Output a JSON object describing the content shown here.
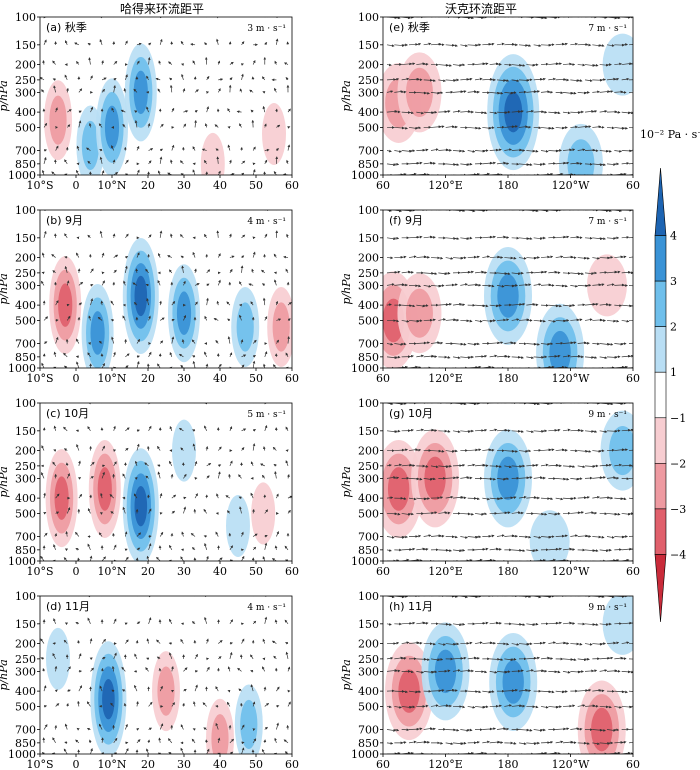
{
  "column_titles": [
    "哈得来环流距平",
    "沃克环流距平"
  ],
  "colorbar": {
    "unit_label": "10⁻² Pa · s⁻¹",
    "ticks": [
      "4",
      "3",
      "2",
      "1",
      "−1",
      "−2",
      "−3",
      "−4"
    ],
    "levels": [
      -4.5,
      -4,
      -3,
      -2,
      -1,
      1,
      2,
      3,
      4,
      4.5
    ],
    "colors": [
      "#c92b3a",
      "#e0606c",
      "#ee9aa1",
      "#f7cdd1",
      "#ffffff",
      "#b9def4",
      "#6fbfeb",
      "#3a93d6",
      "#1d64b2"
    ]
  },
  "colors": {
    "positive": "#2f86cf",
    "negative": "#d94a58",
    "vector": "#333333"
  },
  "y_axis": {
    "label": "p/hPa",
    "ticks": [
      "100",
      "150",
      "200",
      "250",
      "300",
      "400",
      "500",
      "700",
      "850",
      "1000"
    ]
  },
  "chart_data": [
    {
      "type": "contour-vector",
      "panel": "a",
      "title": "(a) 秋季",
      "column": "Hadley",
      "vector_scale": "3 m · s⁻¹",
      "x_ticks": [
        "10°S",
        "0",
        "10°N",
        "20",
        "30",
        "40",
        "50",
        "60"
      ],
      "xlim": [
        -10,
        60
      ],
      "ylim": [
        1000,
        100
      ],
      "y_scale": "log",
      "anomaly_blobs": [
        {
          "x": -5,
          "p": 450,
          "value": -2
        },
        {
          "x": 4,
          "p": 650,
          "value": 2
        },
        {
          "x": 10,
          "p": 500,
          "value": 3
        },
        {
          "x": 18,
          "p": 300,
          "value": 3
        },
        {
          "x": 38,
          "p": 850,
          "value": -1
        },
        {
          "x": 55,
          "p": 550,
          "value": -1
        }
      ]
    },
    {
      "type": "contour-vector",
      "panel": "b",
      "title": "(b) 9月",
      "column": "Hadley",
      "vector_scale": "4 m · s⁻¹",
      "x_ticks": [
        "10°S",
        "0",
        "10°N",
        "20",
        "30",
        "40",
        "50",
        "60"
      ],
      "xlim": [
        -10,
        60
      ],
      "ylim": [
        1000,
        100
      ],
      "y_scale": "log",
      "anomaly_blobs": [
        {
          "x": -3,
          "p": 400,
          "value": -3
        },
        {
          "x": 6,
          "p": 600,
          "value": 3
        },
        {
          "x": 18,
          "p": 350,
          "value": 4
        },
        {
          "x": 30,
          "p": 450,
          "value": 3
        },
        {
          "x": 47,
          "p": 550,
          "value": 2
        },
        {
          "x": 57,
          "p": 550,
          "value": -2
        }
      ]
    },
    {
      "type": "contour-vector",
      "panel": "c",
      "title": "(c) 10月",
      "column": "Hadley",
      "vector_scale": "5 m · s⁻¹",
      "x_ticks": [
        "10°S",
        "0",
        "10°N",
        "20",
        "30",
        "40",
        "50",
        "60"
      ],
      "xlim": [
        -10,
        60
      ],
      "ylim": [
        1000,
        100
      ],
      "y_scale": "log",
      "anomaly_blobs": [
        {
          "x": -4,
          "p": 400,
          "value": -3
        },
        {
          "x": 8,
          "p": 350,
          "value": -3
        },
        {
          "x": 18,
          "p": 450,
          "value": 4
        },
        {
          "x": 30,
          "p": 200,
          "value": 1
        },
        {
          "x": 45,
          "p": 600,
          "value": 1
        },
        {
          "x": 52,
          "p": 500,
          "value": -1
        }
      ]
    },
    {
      "type": "contour-vector",
      "panel": "d",
      "title": "(d) 11月",
      "column": "Hadley",
      "vector_scale": "4 m · s⁻¹",
      "x_ticks": [
        "10°S",
        "0",
        "10°N",
        "20",
        "30",
        "40",
        "50",
        "60"
      ],
      "xlim": [
        -10,
        60
      ],
      "ylim": [
        1000,
        100
      ],
      "y_scale": "log",
      "anomaly_blobs": [
        {
          "x": -5,
          "p": 250,
          "value": 1
        },
        {
          "x": 9,
          "p": 450,
          "value": 4
        },
        {
          "x": 25,
          "p": 400,
          "value": -2
        },
        {
          "x": 40,
          "p": 800,
          "value": -2
        },
        {
          "x": 48,
          "p": 650,
          "value": 2
        }
      ]
    },
    {
      "type": "contour-vector",
      "panel": "e",
      "title": "(e) 秋季",
      "column": "Walker",
      "vector_scale": "7 m · s⁻¹",
      "x_ticks": [
        "60",
        "120°E",
        "180",
        "120°W",
        "60"
      ],
      "xlim": [
        60,
        300
      ],
      "ylim": [
        1000,
        100
      ],
      "y_scale": "log",
      "anomaly_blobs": [
        {
          "x": 75,
          "p": 350,
          "value": -2
        },
        {
          "x": 95,
          "p": 300,
          "value": -2
        },
        {
          "x": 185,
          "p": 400,
          "value": 4
        },
        {
          "x": 250,
          "p": 850,
          "value": 2
        },
        {
          "x": 290,
          "p": 200,
          "value": 1
        }
      ]
    },
    {
      "type": "contour-vector",
      "panel": "f",
      "title": "(f) 9月",
      "column": "Walker",
      "vector_scale": "7 m · s⁻¹",
      "x_ticks": [
        "60",
        "120°E",
        "180",
        "120°W",
        "60"
      ],
      "xlim": [
        60,
        300
      ],
      "ylim": [
        1000,
        100
      ],
      "y_scale": "log",
      "anomaly_blobs": [
        {
          "x": 70,
          "p": 500,
          "value": -3
        },
        {
          "x": 95,
          "p": 450,
          "value": -2
        },
        {
          "x": 180,
          "p": 350,
          "value": 3
        },
        {
          "x": 230,
          "p": 800,
          "value": 3
        },
        {
          "x": 275,
          "p": 300,
          "value": -1
        }
      ]
    },
    {
      "type": "contour-vector",
      "panel": "g",
      "title": "(g) 10月",
      "column": "Walker",
      "vector_scale": "9 m · s⁻¹",
      "x_ticks": [
        "60",
        "120°E",
        "180",
        "120°W",
        "60"
      ],
      "xlim": [
        60,
        300
      ],
      "ylim": [
        1000,
        100
      ],
      "y_scale": "log",
      "anomaly_blobs": [
        {
          "x": 75,
          "p": 350,
          "value": -3
        },
        {
          "x": 110,
          "p": 300,
          "value": -3
        },
        {
          "x": 180,
          "p": 300,
          "value": 3
        },
        {
          "x": 220,
          "p": 750,
          "value": 1
        },
        {
          "x": 290,
          "p": 200,
          "value": 2
        }
      ]
    },
    {
      "type": "contour-vector",
      "panel": "h",
      "title": "(h) 11月",
      "column": "Walker",
      "vector_scale": "9 m · s⁻¹",
      "x_ticks": [
        "60",
        "120°E",
        "180",
        "120°W",
        "60"
      ],
      "xlim": [
        60,
        300
      ],
      "ylim": [
        1000,
        100
      ],
      "y_scale": "log",
      "anomaly_blobs": [
        {
          "x": 85,
          "p": 400,
          "value": -3
        },
        {
          "x": 120,
          "p": 300,
          "value": 3
        },
        {
          "x": 185,
          "p": 350,
          "value": 3
        },
        {
          "x": 270,
          "p": 700,
          "value": -3
        },
        {
          "x": 290,
          "p": 150,
          "value": 1
        }
      ]
    }
  ]
}
